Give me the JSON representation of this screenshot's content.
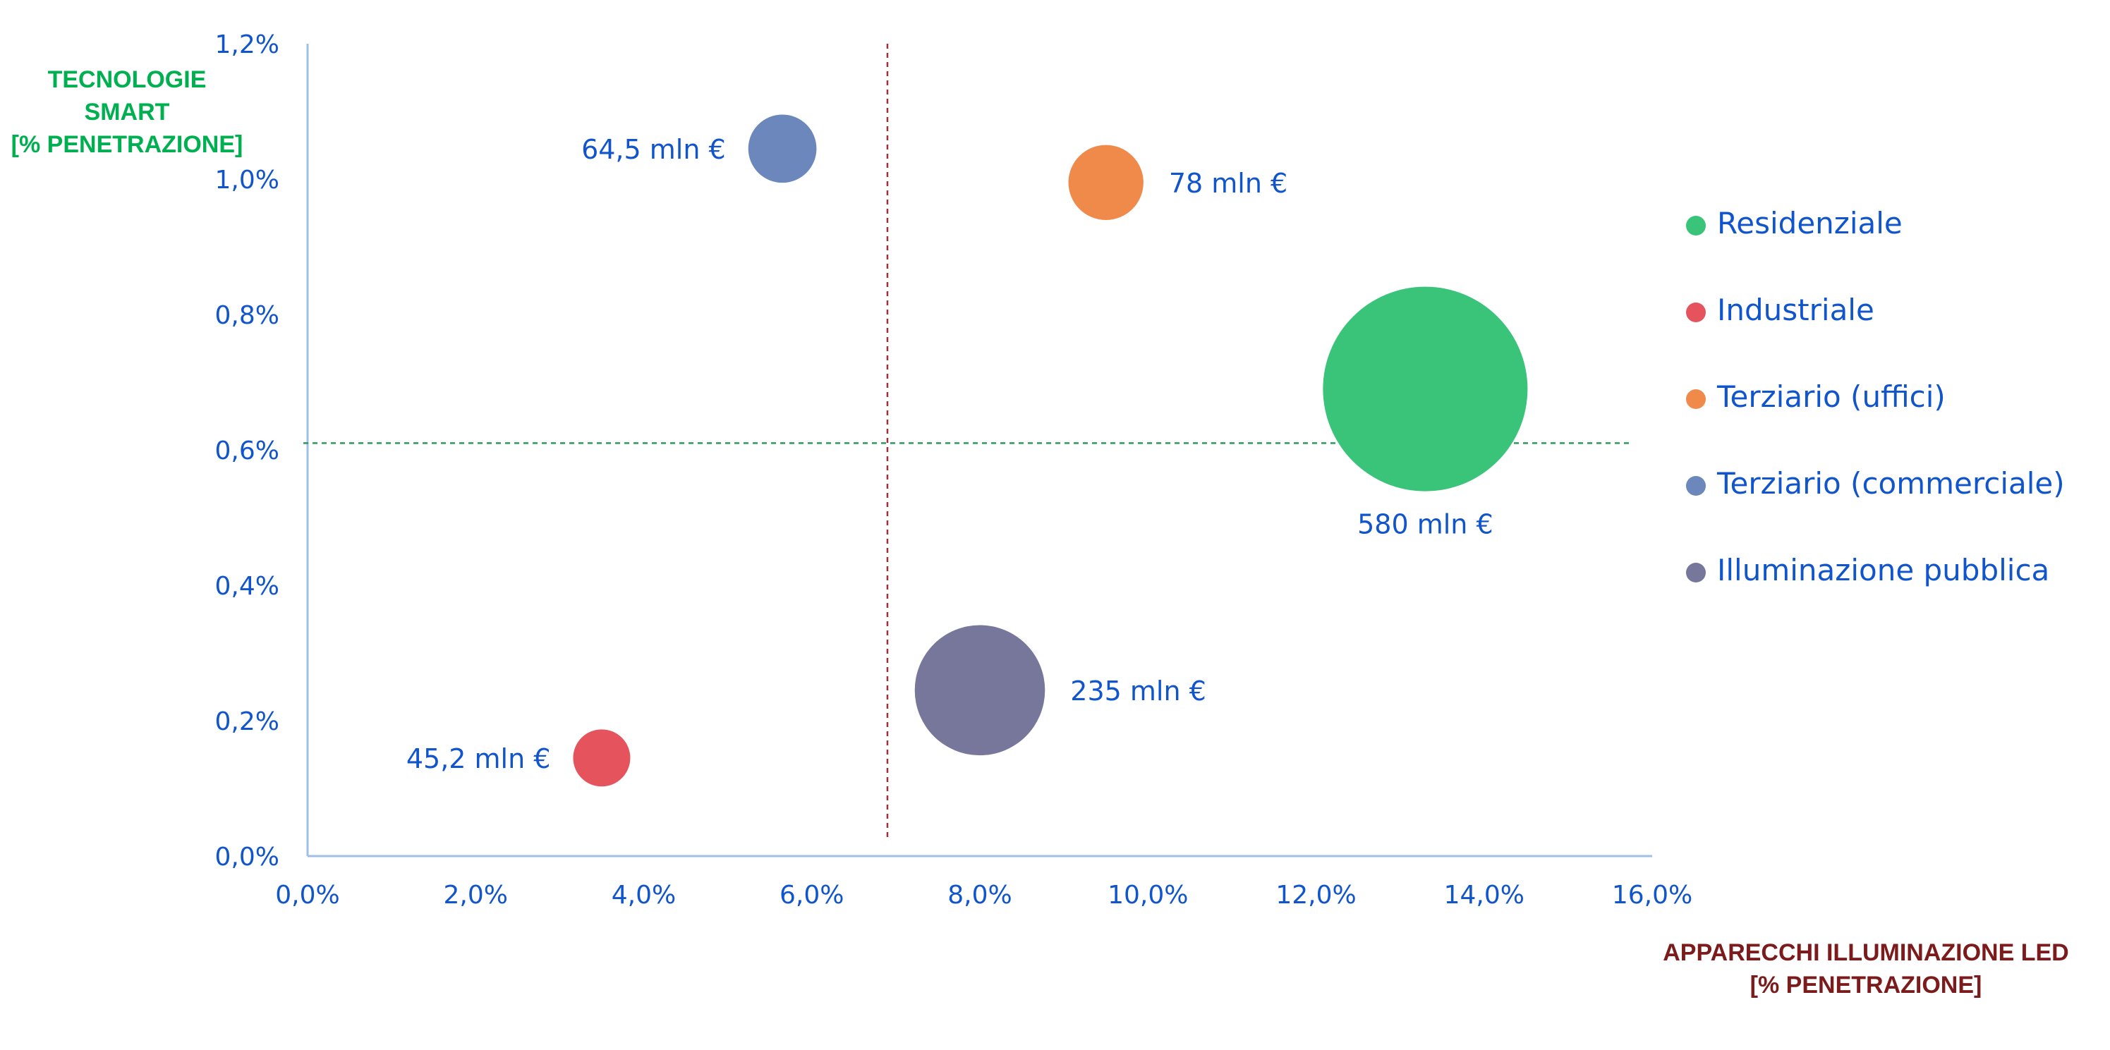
{
  "chart_data": {
    "type": "bubble",
    "ylabel_lines": [
      "TECNOLOGIE",
      "SMART",
      "[% PENETRAZIONE]"
    ],
    "xlabel_lines": [
      "APPARECCHI ILLUMINAZIONE LED",
      "[% PENETRAZIONE]"
    ],
    "xlim": [
      0,
      16
    ],
    "ylim": [
      0,
      1.2
    ],
    "x_ticks": [
      "0,0%",
      "2,0%",
      "4,0%",
      "6,0%",
      "8,0%",
      "10,0%",
      "12,0%",
      "14,0%",
      "16,0%"
    ],
    "y_ticks": [
      "0,0%",
      "0,2%",
      "0,4%",
      "0,6%",
      "0,8%",
      "1,0%",
      "1,2%"
    ],
    "reference_lines": {
      "x": 6.9,
      "y": 0.61
    },
    "series": [
      {
        "name": "Residenziale",
        "color": "#3ac47a",
        "x": 13.3,
        "y": 0.69,
        "value": 580,
        "label": "580 mln €"
      },
      {
        "name": "Industriale",
        "color": "#e5545c",
        "x": 3.5,
        "y": 0.145,
        "value": 45.2,
        "label": "45,2 mln €"
      },
      {
        "name": "Terziario (uffici)",
        "color": "#f08a4b",
        "x": 9.5,
        "y": 0.995,
        "value": 78,
        "label": "78 mln €"
      },
      {
        "name": "Terziario (commerciale)",
        "color": "#6b87bc",
        "x": 5.65,
        "y": 1.045,
        "value": 64.5,
        "label": "64,5 mln €"
      },
      {
        "name": "Illuminazione pubblica",
        "color": "#76779a",
        "x": 8.0,
        "y": 0.245,
        "value": 235,
        "label": "235 mln €"
      }
    ],
    "grid": false,
    "legend_position": "right"
  }
}
